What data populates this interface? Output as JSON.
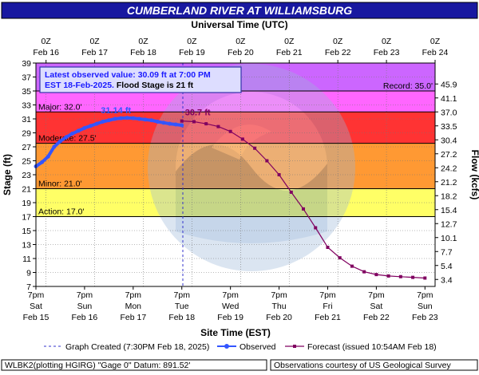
{
  "chart_data": {
    "type": "line",
    "title": "CUMBERLAND RIVER AT WILLIAMSBURG",
    "top_axis_label": "Universal Time (UTC)",
    "top_ticks": [
      {
        "t": 5,
        "l1": "0Z",
        "l2": "Feb 16"
      },
      {
        "t": 29,
        "l1": "0Z",
        "l2": "Feb 17"
      },
      {
        "t": 53,
        "l1": "0Z",
        "l2": "Feb 18"
      },
      {
        "t": 77,
        "l1": "0Z",
        "l2": "Feb 19"
      },
      {
        "t": 101,
        "l1": "0Z",
        "l2": "Feb 20"
      },
      {
        "t": 125,
        "l1": "0Z",
        "l2": "Feb 21"
      },
      {
        "t": 149,
        "l1": "0Z",
        "l2": "Feb 22"
      },
      {
        "t": 173,
        "l1": "0Z",
        "l2": "Feb 23"
      },
      {
        "t": 197,
        "l1": "0Z",
        "l2": "Feb 24"
      }
    ],
    "xlabel": "Site Time (EST)",
    "bottom_ticks": [
      {
        "t": 0,
        "l1": "7pm",
        "l2": "Sat",
        "l3": "Feb 15"
      },
      {
        "t": 24,
        "l1": "7pm",
        "l2": "Sun",
        "l3": "Feb 16"
      },
      {
        "t": 48,
        "l1": "7pm",
        "l2": "Mon",
        "l3": "Feb 17"
      },
      {
        "t": 72,
        "l1": "7pm",
        "l2": "Tue",
        "l3": "Feb 18"
      },
      {
        "t": 96,
        "l1": "7pm",
        "l2": "Wed",
        "l3": "Feb 19"
      },
      {
        "t": 120,
        "l1": "7pm",
        "l2": "Thu",
        "l3": "Feb 20"
      },
      {
        "t": 144,
        "l1": "7pm",
        "l2": "Fri",
        "l3": "Feb 21"
      },
      {
        "t": 168,
        "l1": "7pm",
        "l2": "Sat",
        "l3": "Feb 22"
      },
      {
        "t": 192,
        "l1": "7pm",
        "l2": "Sun",
        "l3": "Feb 23"
      }
    ],
    "x_unit_note": "hours after 7pm EST Feb 15",
    "xlim": [
      0,
      197
    ],
    "ylabel": "Stage (ft)",
    "ylim": [
      7,
      39
    ],
    "y_ticks": [
      7,
      9,
      11,
      13,
      15,
      17,
      19,
      21,
      23,
      25,
      27,
      29,
      31,
      33,
      35,
      37,
      39
    ],
    "y2label": "Flow (kcfs)",
    "y2_ticks": [
      {
        "stage": 8.0,
        "label": "3.4"
      },
      {
        "stage": 10.0,
        "label": "5.4"
      },
      {
        "stage": 12.0,
        "label": "7.7"
      },
      {
        "stage": 14.0,
        "label": "10.1"
      },
      {
        "stage": 16.0,
        "label": "12.7"
      },
      {
        "stage": 18.0,
        "label": "15.4"
      },
      {
        "stage": 20.0,
        "label": "18.2"
      },
      {
        "stage": 22.0,
        "label": "21.2"
      },
      {
        "stage": 24.0,
        "label": "24.2"
      },
      {
        "stage": 26.0,
        "label": "27.2"
      },
      {
        "stage": 28.0,
        "label": "30.4"
      },
      {
        "stage": 30.0,
        "label": "33.5"
      },
      {
        "stage": 32.0,
        "label": "37.0"
      },
      {
        "stage": 34.0,
        "label": "41.1"
      },
      {
        "stage": 36.0,
        "label": "45.9"
      }
    ],
    "flood_bands": [
      {
        "name": "Record",
        "label": "Record: 35.0'",
        "from": 35,
        "to": 39,
        "color": "#cc66ff"
      },
      {
        "name": "Major",
        "label": "Major: 32.0'",
        "from": 32,
        "to": 35,
        "color": "#ff66ff"
      },
      {
        "name": "Moderate",
        "label": "Moderate: 27.5'",
        "from": 27.5,
        "to": 32,
        "color": "#ff3333"
      },
      {
        "name": "Minor",
        "label": "Minor: 21.0'",
        "from": 21,
        "to": 27.5,
        "color": "#ff9933"
      },
      {
        "name": "Action",
        "label": "Action: 17.0'",
        "from": 17,
        "to": 21,
        "color": "#ffff66"
      }
    ],
    "grid": true,
    "info_box": {
      "line1": "Latest observed value: 30.09 ft at 7:00 PM",
      "line2a": "EST 18-Feb-2025.",
      "line2b": " Flood Stage is 21 ft"
    },
    "observed_peak_label": "31.14 ft",
    "forecast_peak_label": "30.7 ft",
    "graph_created_t": 72.5,
    "series": [
      {
        "name": "Observed",
        "color": "#3355ff",
        "x": [
          0,
          3,
          6,
          9,
          12,
          15,
          18,
          21,
          24,
          27,
          30,
          33,
          36,
          39,
          42,
          45,
          48,
          51,
          54,
          57,
          60,
          63,
          66,
          69,
          72
        ],
        "y": [
          24.2,
          24.8,
          25.6,
          27.0,
          27.8,
          28.4,
          28.9,
          29.3,
          29.7,
          30.0,
          30.3,
          30.6,
          30.8,
          31.0,
          31.1,
          31.14,
          31.1,
          31.0,
          30.9,
          30.8,
          30.6,
          30.45,
          30.3,
          30.2,
          30.09
        ]
      },
      {
        "name": "Forecast",
        "color": "#800060",
        "x": [
          72,
          78,
          84,
          90,
          96,
          102,
          108,
          114,
          120,
          126,
          132,
          138,
          144,
          150,
          156,
          162,
          168,
          174,
          180,
          186,
          192
        ],
        "y": [
          30.7,
          30.6,
          30.3,
          29.9,
          29.2,
          28.1,
          26.8,
          25.0,
          23.0,
          20.5,
          18.1,
          15.4,
          12.6,
          11.1,
          9.9,
          9.1,
          8.7,
          8.5,
          8.4,
          8.3,
          8.2
        ]
      }
    ],
    "legend": {
      "graph_created": "Graph Created (7:30PM Feb 18, 2025)",
      "observed": "Observed",
      "forecast": "Forecast (issued 10:54AM Feb 18)"
    },
    "footer_left": "WLBK2(plotting HGIRG) \"Gage 0\" Datum: 891.52'",
    "footer_right": "Observations courtesy of US Geological Survey"
  }
}
